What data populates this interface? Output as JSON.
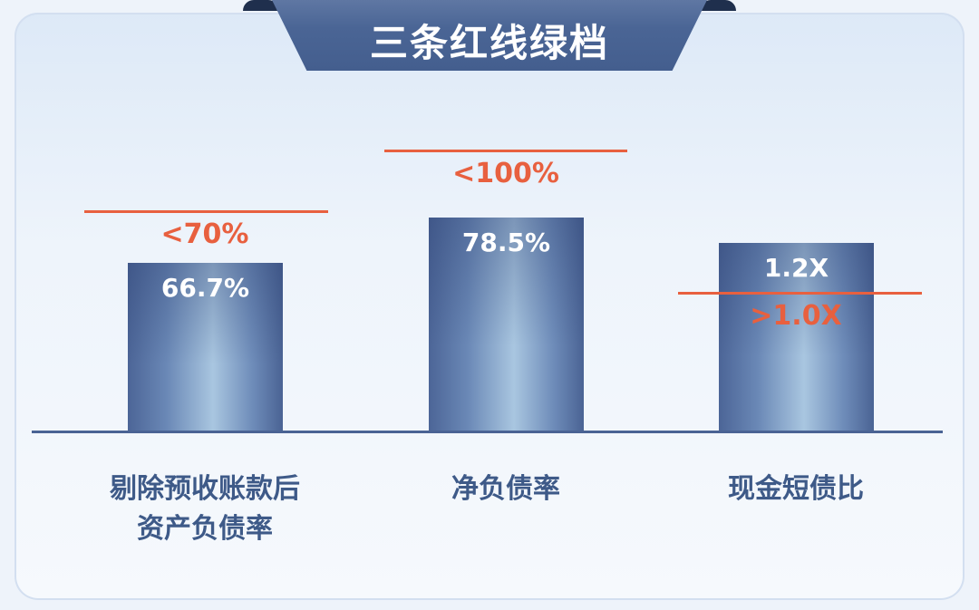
{
  "chart_data": {
    "type": "bar",
    "title": "三条红线绿档",
    "categories": [
      "剔除预收账款后\n资产负债率",
      "净负债率",
      "现金短债比"
    ],
    "values": [
      66.7,
      78.5,
      1.2
    ],
    "value_labels": [
      "66.7%",
      "78.5%",
      "1.2X"
    ],
    "thresholds": [
      70,
      100,
      1.0
    ],
    "threshold_labels": [
      "<70%",
      "<100%",
      ">1.0X"
    ],
    "grid": false,
    "colors": {
      "bar": "#4c6597",
      "threshold": "#e8603f",
      "title_bg": "#4a6595"
    }
  }
}
